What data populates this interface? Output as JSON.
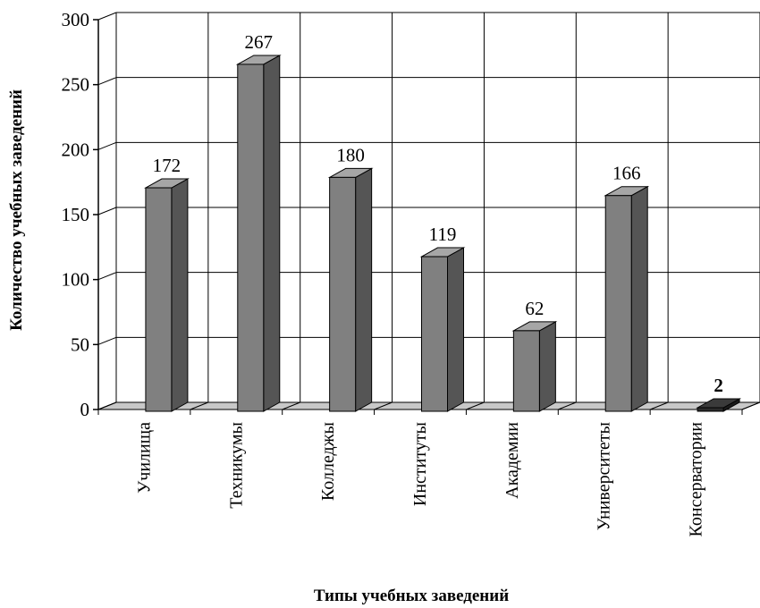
{
  "chart_data": {
    "type": "bar",
    "style": "3d-column",
    "categories": [
      "Училища",
      "Техникумы",
      "Колледжы",
      "Институты",
      "Академии",
      "Университеты",
      "Консерватории"
    ],
    "values": [
      172,
      267,
      180,
      119,
      62,
      166,
      2
    ],
    "data_labels": [
      "172",
      "267",
      "180",
      "119",
      "62",
      "166",
      "2"
    ],
    "ylim": [
      0,
      300
    ],
    "yticks": [
      0,
      50,
      100,
      150,
      200,
      250,
      300
    ],
    "ytick_labels": [
      "0",
      "50",
      "100",
      "150",
      "200",
      "250",
      "300"
    ],
    "xlabel": "Типы учебных заведений",
    "ylabel": "Количество учебных заведений",
    "grid": true,
    "legend": "none",
    "colors": {
      "bar_front": "#808080",
      "bar_side": "#555555",
      "bar_top": "#a6a6a6",
      "last_bar_front": "#2b2b2b",
      "last_bar_side": "#1a1a1a",
      "last_bar_top": "#3a3a3a",
      "floor": "#c8c8c8",
      "grid": "#000000"
    }
  }
}
